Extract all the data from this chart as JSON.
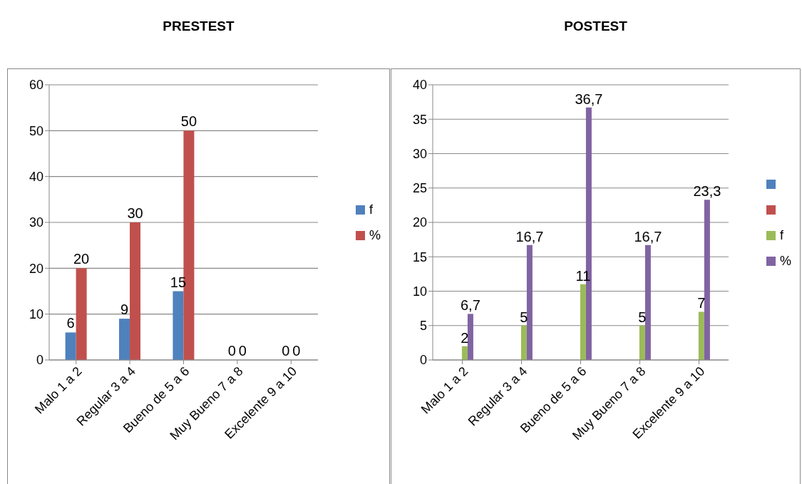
{
  "chart_data": [
    {
      "type": "bar",
      "title": "PRESTEST",
      "categories": [
        "Malo 1 a 2",
        "Regular 3 a 4",
        "Bueno de 5 a 6",
        "Muy Bueno 7 a 8",
        "Excelente 9 a 10"
      ],
      "series": [
        {
          "name": "f",
          "color": "#4f81bd",
          "values": [
            6,
            9,
            15,
            0,
            0
          ]
        },
        {
          "name": "%",
          "color": "#c0504d",
          "values": [
            20,
            30,
            50,
            0,
            0
          ]
        }
      ],
      "ylim": [
        0,
        60
      ],
      "yticks": [
        0,
        10,
        20,
        30,
        40,
        50,
        60
      ],
      "grid": "y",
      "legend": "right",
      "data_labels": true
    },
    {
      "type": "bar",
      "title": "POSTEST",
      "categories": [
        "Malo 1 a 2",
        "Regular 3 a 4",
        "Bueno de 5 a 6",
        "Muy Bueno 7 a 8",
        "Excelente 9 a 10"
      ],
      "series": [
        {
          "color": "#4f81bd",
          "values": [
            null,
            null,
            null,
            null,
            null
          ]
        },
        {
          "color": "#c0504d",
          "values": [
            null,
            null,
            null,
            null,
            null
          ]
        },
        {
          "name": "f",
          "color": "#9bbb59",
          "values": [
            2,
            5,
            11,
            5,
            7
          ],
          "value_labels": [
            "2",
            "5",
            "11",
            "5",
            "7"
          ]
        },
        {
          "name": "%",
          "color": "#8064a2",
          "values": [
            6.7,
            16.7,
            36.7,
            16.7,
            23.3
          ],
          "value_labels": [
            "6,7",
            "16,7",
            "36,7",
            "16,7",
            "23,3"
          ]
        }
      ],
      "ylim": [
        0,
        40
      ],
      "yticks": [
        0,
        5,
        10,
        15,
        20,
        25,
        30,
        35,
        40
      ],
      "grid": "y",
      "legend": "right"
    }
  ]
}
